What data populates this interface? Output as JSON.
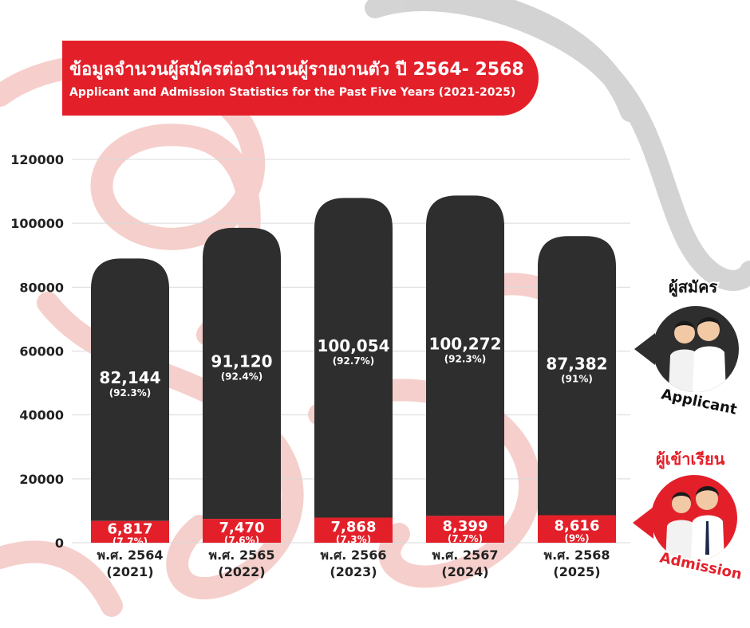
{
  "title": {
    "thai": "ข้อมูลจำนวนผู้สมัครต่อจำนวนผู้รายงานตัว ปี 2564- 2568",
    "english": "Applicant and Admission Statistics for the Past Five Years (2021-2025)"
  },
  "legend": {
    "applicant_th": "ผู้สมัคร",
    "applicant_en": "Applicant",
    "admission_th": "ผู้เข้าเรียน",
    "admission_en": "Admission"
  },
  "colors": {
    "applicant_bar": "#2e2e2e",
    "admission_bar": "#e3202a",
    "accent": "#e3202a"
  },
  "chart_data": {
    "type": "bar",
    "stacked": true,
    "categories": [
      {
        "line1": "พ.ศ. 2564",
        "line2": "(2021)"
      },
      {
        "line1": "พ.ศ. 2565",
        "line2": "(2022)"
      },
      {
        "line1": "พ.ศ. 2566",
        "line2": "(2023)"
      },
      {
        "line1": "พ.ศ. 2567",
        "line2": "(2024)"
      },
      {
        "line1": "พ.ศ. 2568",
        "line2": "(2025)"
      }
    ],
    "series": [
      {
        "name": "ผู้เข้าเรียน",
        "values": [
          6817,
          7470,
          7868,
          8399,
          8616
        ],
        "labels": [
          "6,817",
          "7,470",
          "7,868",
          "8,399",
          "8,616"
        ],
        "percents": [
          "(7.7%)",
          "(7.6%)",
          "(7.3%)",
          "(7.7%)",
          "(9%)"
        ]
      },
      {
        "name": "ผู้สมัคร",
        "values": [
          82144,
          91120,
          100054,
          100272,
          87382
        ],
        "labels": [
          "82,144",
          "91,120",
          "100,054",
          "100,272",
          "87,382"
        ],
        "percents": [
          "(92.3%)",
          "(92.4%)",
          "(92.7%)",
          "(92.3%)",
          "(91%)"
        ]
      }
    ],
    "yticks": [
      "0",
      "20000",
      "40000",
      "60000",
      "80000",
      "100000",
      "120000"
    ],
    "ylim": [
      0,
      120000
    ],
    "grid": true
  }
}
